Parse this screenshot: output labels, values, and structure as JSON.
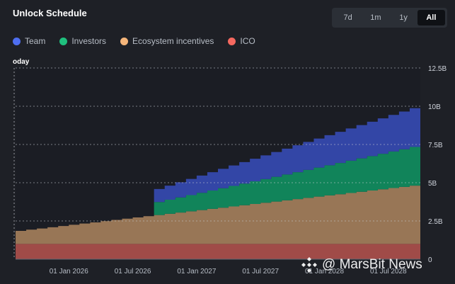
{
  "header": {
    "title": "Unlock Schedule",
    "ranges": [
      "7d",
      "1m",
      "1y",
      "All"
    ],
    "active_range": "All"
  },
  "colors": {
    "Team": "#3346a6",
    "Investors": "#11845a",
    "Ecosystem incentives": "#987656",
    "ICO": "#a04b48",
    "legend_Team": "#4e6ef0",
    "legend_Investors": "#1fc07e",
    "legend_Ecosystem incentives": "#f5b57a",
    "legend_ICO": "#f5685f"
  },
  "today_label": "oday",
  "watermark": {
    "text": "@ MarsBit News",
    "icon": "marsbit-diamond-logo"
  },
  "chart_data": {
    "type": "area",
    "stacked": true,
    "title": "Unlock Schedule",
    "legend_position": "top-left",
    "grid": true,
    "x_start": "2025-08",
    "x_end": "2028-10",
    "x_ticks": [
      "01 Jan 2026",
      "01 Jul 2026",
      "01 Jan 2027",
      "01 Jul 2027",
      "01 Jan 2028",
      "01 Jul 2028"
    ],
    "y_ticks": [
      "0",
      "2.5B",
      "5B",
      "7.5B",
      "10B",
      "12.5B"
    ],
    "ylim": [
      0,
      12.5
    ],
    "y_unit": "B",
    "x": [
      "2025-08",
      "2025-09",
      "2025-10",
      "2025-11",
      "2025-12",
      "2026-01",
      "2026-02",
      "2026-03",
      "2026-04",
      "2026-05",
      "2026-06",
      "2026-07",
      "2026-08",
      "2026-09",
      "2026-10",
      "2026-11",
      "2026-12",
      "2027-01",
      "2027-02",
      "2027-03",
      "2027-04",
      "2027-05",
      "2027-06",
      "2027-07",
      "2027-08",
      "2027-09",
      "2027-10",
      "2027-11",
      "2027-12",
      "2028-01",
      "2028-02",
      "2028-03",
      "2028-04",
      "2028-05",
      "2028-06",
      "2028-07",
      "2028-08",
      "2028-09",
      "2028-10"
    ],
    "series": [
      {
        "name": "ICO",
        "values": [
          1.0,
          1.0,
          1.0,
          1.0,
          1.0,
          1.0,
          1.0,
          1.0,
          1.0,
          1.0,
          1.0,
          1.0,
          1.0,
          1.0,
          1.0,
          1.0,
          1.0,
          1.0,
          1.0,
          1.0,
          1.0,
          1.0,
          1.0,
          1.0,
          1.0,
          1.0,
          1.0,
          1.0,
          1.0,
          1.0,
          1.0,
          1.0,
          1.0,
          1.0,
          1.0,
          1.0,
          1.0,
          1.0,
          1.0
        ]
      },
      {
        "name": "Ecosystem incentives",
        "values": [
          0.85,
          0.93,
          1.01,
          1.09,
          1.17,
          1.25,
          1.33,
          1.41,
          1.49,
          1.57,
          1.65,
          1.73,
          1.81,
          1.89,
          1.97,
          2.05,
          2.13,
          2.21,
          2.29,
          2.37,
          2.45,
          2.53,
          2.61,
          2.69,
          2.77,
          2.85,
          2.93,
          3.01,
          3.09,
          3.17,
          3.25,
          3.33,
          3.41,
          3.49,
          3.57,
          3.65,
          3.73,
          3.81,
          3.89
        ]
      },
      {
        "name": "Investors",
        "values": [
          0,
          0,
          0,
          0,
          0,
          0,
          0,
          0,
          0,
          0,
          0,
          0,
          0,
          0.85,
          0.92,
          0.99,
          1.06,
          1.13,
          1.2,
          1.27,
          1.34,
          1.41,
          1.48,
          1.55,
          1.62,
          1.69,
          1.76,
          1.83,
          1.9,
          1.97,
          2.04,
          2.11,
          2.18,
          2.25,
          2.32,
          2.39,
          2.46,
          2.53,
          2.6
        ]
      },
      {
        "name": "Team",
        "values": [
          0,
          0,
          0,
          0,
          0,
          0,
          0,
          0,
          0,
          0,
          0,
          0,
          0,
          0.85,
          0.92,
          0.99,
          1.06,
          1.13,
          1.2,
          1.27,
          1.34,
          1.41,
          1.48,
          1.55,
          1.62,
          1.69,
          1.76,
          1.83,
          1.9,
          1.97,
          2.04,
          2.11,
          2.18,
          2.25,
          2.32,
          2.39,
          2.46,
          2.53,
          2.6
        ]
      }
    ]
  }
}
